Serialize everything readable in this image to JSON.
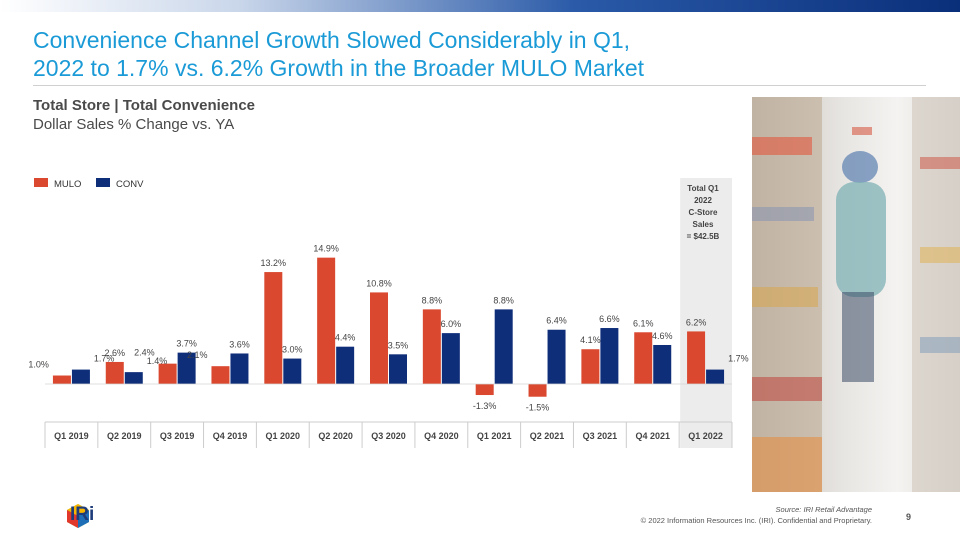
{
  "header": {
    "title_line1": "Convenience Channel Growth Slowed Considerably in Q1,",
    "title_line2": "2022 to 1.7% vs. 6.2% Growth in the Broader MULO Market",
    "subtitle_bold": "Total Store | Total Convenience",
    "subtitle": "Dollar Sales % Change vs. YA"
  },
  "colors": {
    "title": "#1a9ad6",
    "mulo": "#d9482f",
    "conv": "#0f2e7a",
    "highlight_bg": "#ececec"
  },
  "chart_data": {
    "type": "bar",
    "categories": [
      "Q1 2019",
      "Q2 2019",
      "Q3 2019",
      "Q4 2019",
      "Q1 2020",
      "Q2 2020",
      "Q3 2020",
      "Q4 2020",
      "Q1 2021",
      "Q2 2021",
      "Q3 2021",
      "Q4 2021",
      "Q1 2022"
    ],
    "series": [
      {
        "name": "MULO",
        "values": [
          1.0,
          2.6,
          2.4,
          2.1,
          13.2,
          14.9,
          10.8,
          8.8,
          -1.3,
          -1.5,
          4.1,
          6.1,
          6.2
        ],
        "labels": [
          "1.0%",
          "2.6%",
          "2.4%",
          "2.1%",
          "13.2%",
          "14.9%",
          "10.8%",
          "8.8%",
          "-1.3%",
          "-1.5%",
          "4.1%",
          "6.1%",
          "6.2%"
        ]
      },
      {
        "name": "CONV",
        "values": [
          1.7,
          1.4,
          3.7,
          3.6,
          3.0,
          4.4,
          3.5,
          6.0,
          8.8,
          6.4,
          6.6,
          4.6,
          1.7
        ],
        "labels": [
          "1.7%",
          "1.4%",
          "3.7%",
          "3.6%",
          "3.0%",
          "4.4%",
          "3.5%",
          "6.0%",
          "8.8%",
          "6.4%",
          "6.6%",
          "4.6%",
          "1.7%"
        ]
      }
    ],
    "legend_position": "top-left",
    "highlight_category": "Q1 2022",
    "callout": [
      "Total Q1",
      "2022",
      "C-Store",
      "Sales",
      "= $42.5B"
    ],
    "grid": false
  },
  "footer": {
    "logo_text": "IRi",
    "source": "Source: IRI Retail Advantage",
    "copyright": "© 2022 Information Resources Inc. (IRI). Confidential and Proprietary.",
    "page_number": "9"
  }
}
